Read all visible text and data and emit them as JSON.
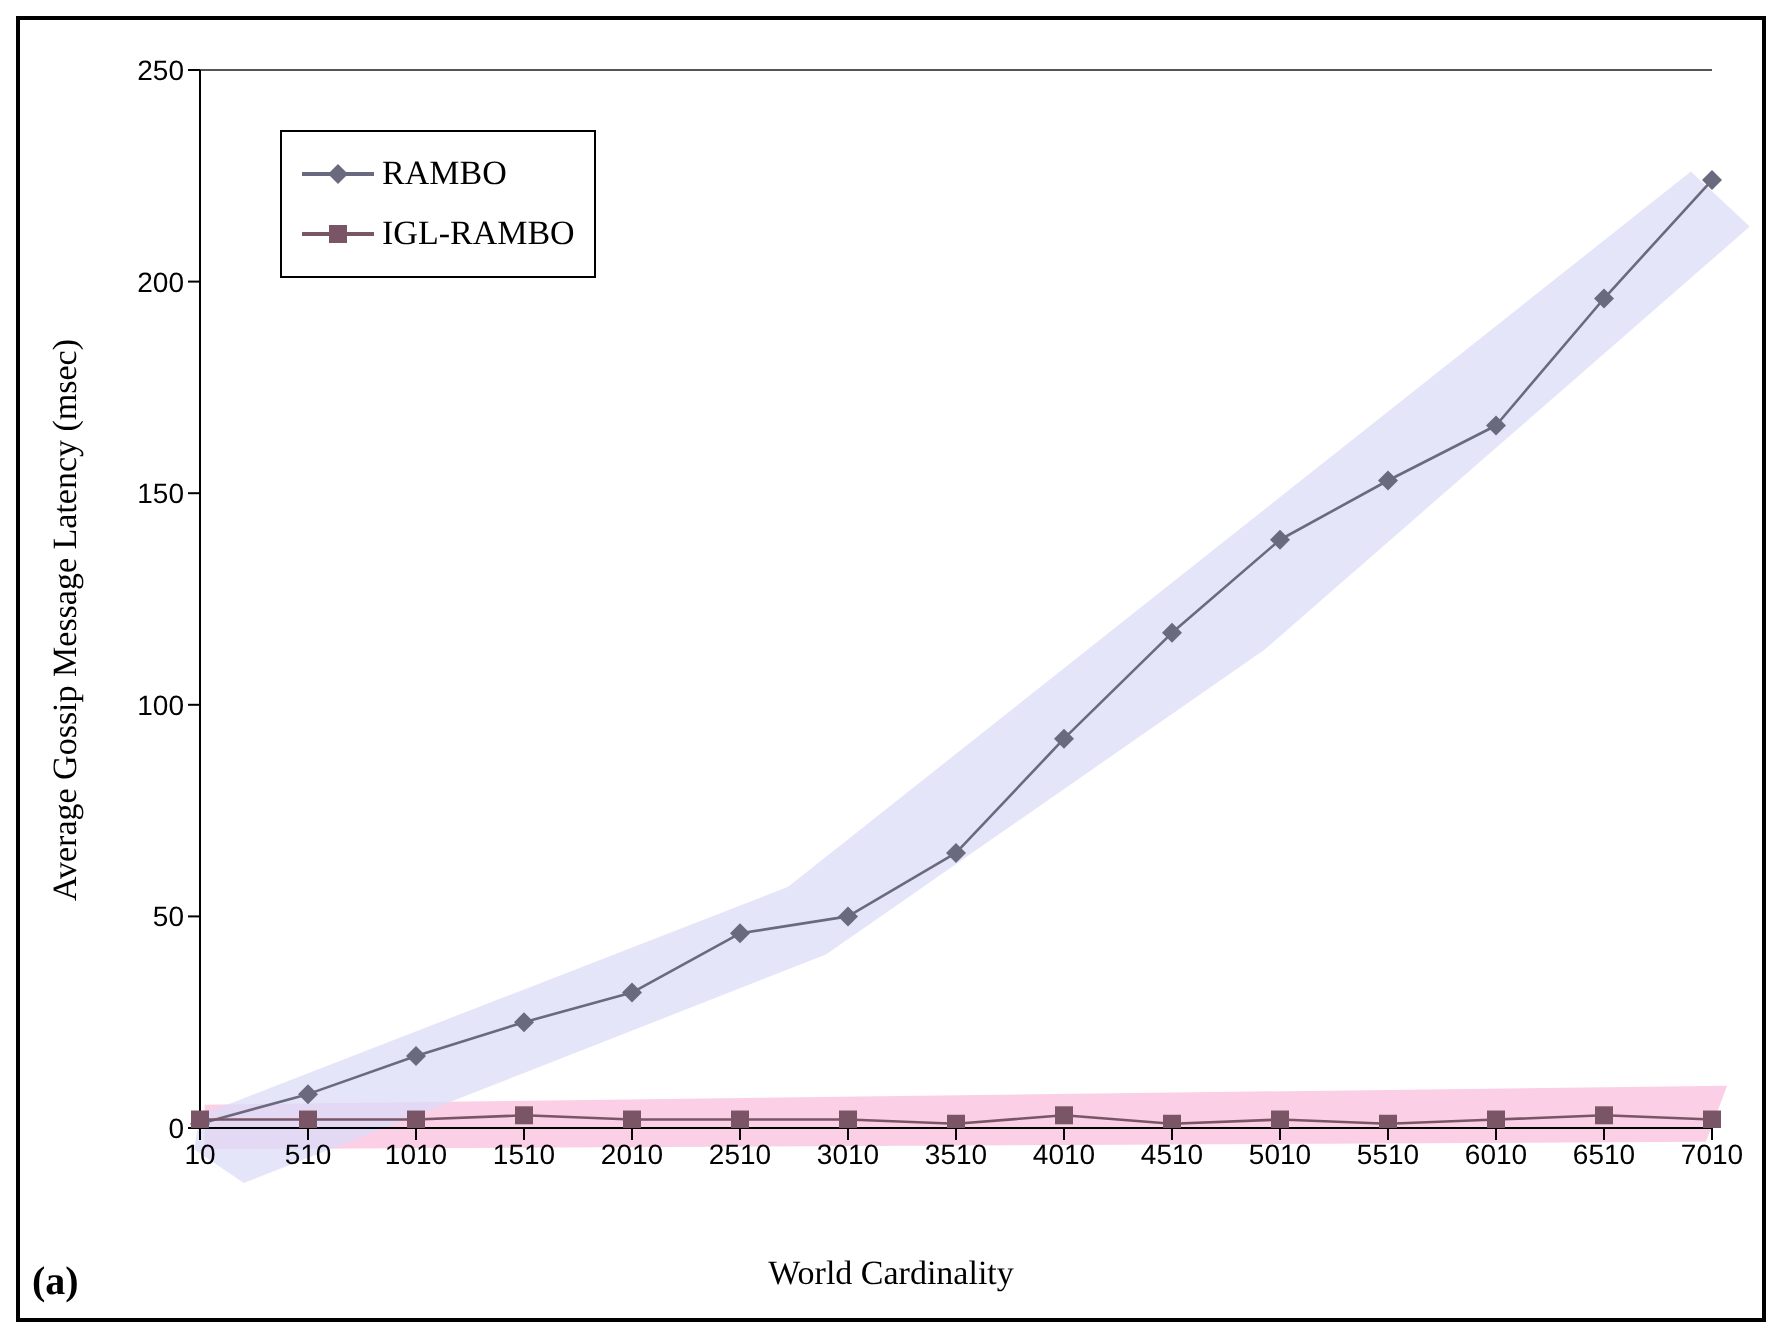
{
  "chart_data": {
    "type": "line",
    "xlabel": "World Cardinality",
    "ylabel": "Average Gossip Message Latency (msec)",
    "annotations": [
      "(a)"
    ],
    "categories": [
      "10",
      "510",
      "1010",
      "1510",
      "2010",
      "2510",
      "3010",
      "3510",
      "4010",
      "4510",
      "5010",
      "5510",
      "6010",
      "6510",
      "7010"
    ],
    "series": [
      {
        "name": "RAMBO",
        "color": "#6a6a7e",
        "marker": "diamond",
        "values": [
          1,
          8,
          17,
          25,
          32,
          46,
          50,
          65,
          92,
          117,
          139,
          153,
          166,
          196,
          224
        ]
      },
      {
        "name": "IGL-RAMBO",
        "color": "#7a5565",
        "marker": "square",
        "values": [
          2,
          2,
          2,
          3,
          2,
          2,
          2,
          1,
          3,
          1,
          2,
          1,
          2,
          3,
          2
        ]
      }
    ],
    "ylim": [
      0,
      250
    ],
    "yticks": [
      0,
      50,
      100,
      150,
      200,
      250
    ],
    "grid": false,
    "legend": "top left",
    "line_style": "solid"
  }
}
